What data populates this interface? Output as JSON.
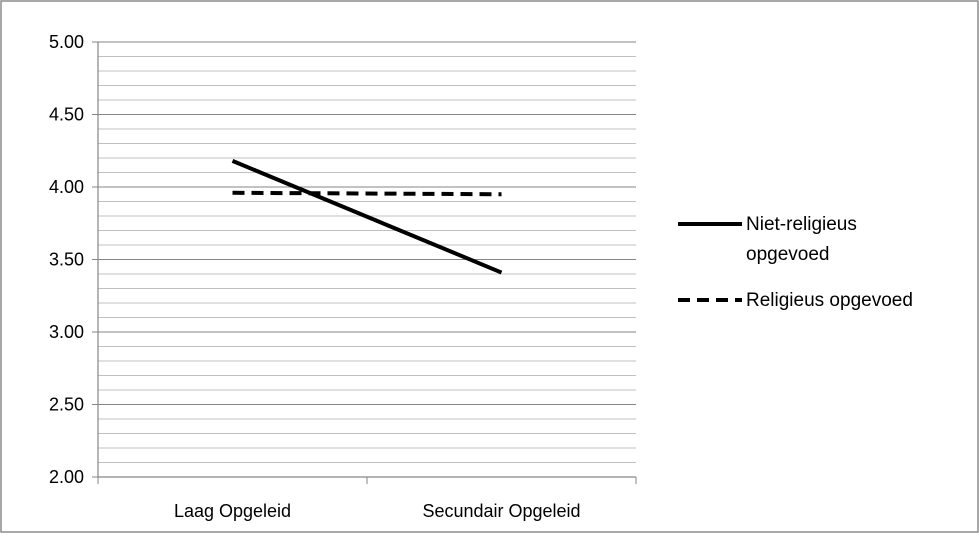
{
  "chart_data": {
    "type": "line",
    "title": "",
    "xlabel": "",
    "ylabel": "",
    "categories": [
      "Laag Opgeleid",
      "Secundair Opgeleid"
    ],
    "ylim": [
      2.0,
      5.0
    ],
    "y_ticks": [
      "2.00",
      "2.50",
      "3.00",
      "3.50",
      "4.00",
      "4.50",
      "5.00"
    ],
    "minor_grid_step": 0.1,
    "grid": true,
    "legend_position": "right",
    "series": [
      {
        "name": "Niet-religieus opgevoed",
        "values": [
          4.18,
          3.41
        ],
        "style": "solid",
        "color": "#000000"
      },
      {
        "name": "Religieus opgevoed",
        "values": [
          3.96,
          3.95
        ],
        "style": "dashed",
        "color": "#000000"
      }
    ],
    "colors": {
      "major_grid": "#868686",
      "minor_grid": "#c0c0c0",
      "frame": "#8c8c8c"
    }
  }
}
